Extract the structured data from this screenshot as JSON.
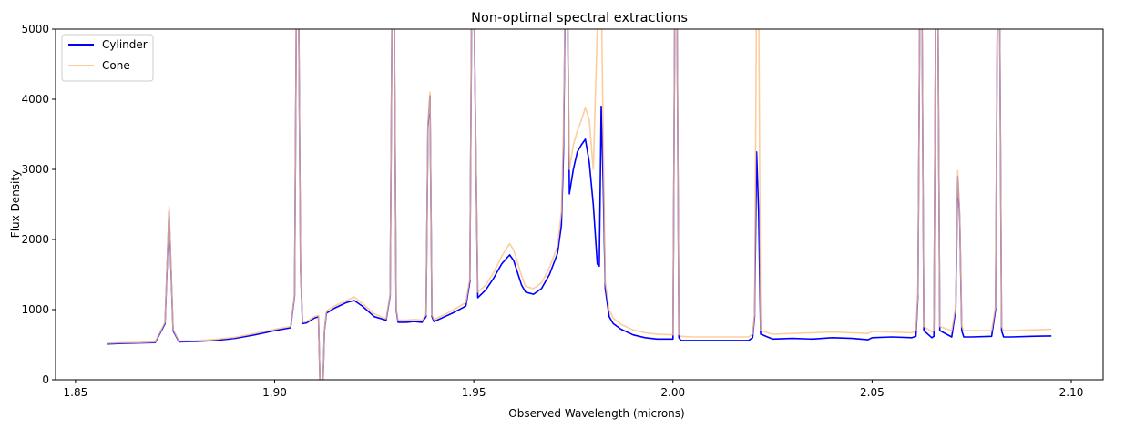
{
  "chart_data": {
    "type": "line",
    "title": "Non-optimal spectral extractions",
    "xlabel": "Observed Wavelength (microns)",
    "ylabel": "Flux Density",
    "xlim": [
      1.845,
      2.108
    ],
    "ylim": [
      0,
      5000
    ],
    "xticks": [
      1.85,
      1.9,
      1.95,
      2.0,
      2.05,
      2.1
    ],
    "xtick_labels": [
      "1.85",
      "1.90",
      "1.95",
      "2.00",
      "2.05",
      "2.10"
    ],
    "yticks": [
      0,
      1000,
      2000,
      3000,
      4000,
      5000
    ],
    "ytick_labels": [
      "0",
      "1000",
      "2000",
      "3000",
      "4000",
      "5000"
    ],
    "grid": false,
    "legend_position": "top-left",
    "series": [
      {
        "name": "Cylinder",
        "color": "#0000ff",
        "x": [
          1.858,
          1.862,
          1.866,
          1.87,
          1.8725,
          1.8735,
          1.8745,
          1.876,
          1.88,
          1.885,
          1.89,
          1.895,
          1.9,
          1.904,
          1.905,
          1.9055,
          1.906,
          1.9065,
          1.907,
          1.908,
          1.91,
          1.911,
          1.9115,
          1.912,
          1.9125,
          1.913,
          1.915,
          1.918,
          1.92,
          1.922,
          1.925,
          1.928,
          1.929,
          1.9295,
          1.93,
          1.9305,
          1.931,
          1.933,
          1.935,
          1.937,
          1.938,
          1.9385,
          1.939,
          1.9395,
          1.94,
          1.942,
          1.945,
          1.948,
          1.949,
          1.9495,
          1.95,
          1.951,
          1.953,
          1.955,
          1.957,
          1.959,
          1.96,
          1.962,
          1.963,
          1.965,
          1.967,
          1.969,
          1.971,
          1.972,
          1.9725,
          1.973,
          1.9735,
          1.974,
          1.975,
          1.976,
          1.977,
          1.978,
          1.979,
          1.98,
          1.981,
          1.9815,
          1.982,
          1.9825,
          1.983,
          1.984,
          1.985,
          1.987,
          1.99,
          1.993,
          1.996,
          2.0,
          2.0005,
          2.001,
          2.0015,
          2.002,
          2.005,
          2.01,
          2.015,
          2.019,
          2.02,
          2.0205,
          2.021,
          2.0215,
          2.022,
          2.025,
          2.03,
          2.035,
          2.04,
          2.045,
          2.049,
          2.05,
          2.055,
          2.06,
          2.061,
          2.0615,
          2.062,
          2.0625,
          2.063,
          2.065,
          2.0655,
          2.066,
          2.0665,
          2.067,
          2.07,
          2.071,
          2.0715,
          2.072,
          2.0725,
          2.073,
          2.075,
          2.08,
          2.081,
          2.0815,
          2.082,
          2.0825,
          2.083,
          2.085,
          2.09,
          2.095
        ],
        "y": [
          510,
          520,
          525,
          530,
          800,
          2400,
          700,
          540,
          545,
          560,
          590,
          640,
          700,
          740,
          1200,
          5600,
          5600,
          1600,
          800,
          810,
          880,
          900,
          -300,
          -300,
          700,
          950,
          1020,
          1100,
          1130,
          1050,
          900,
          850,
          1200,
          5500,
          5500,
          1000,
          820,
          820,
          830,
          820,
          900,
          3600,
          4050,
          900,
          830,
          880,
          960,
          1050,
          1400,
          5600,
          5600,
          1170,
          1280,
          1450,
          1650,
          1780,
          1700,
          1350,
          1250,
          1220,
          1300,
          1500,
          1800,
          2200,
          3200,
          5600,
          5600,
          2650,
          3000,
          3250,
          3350,
          3430,
          3100,
          2500,
          1650,
          1620,
          3900,
          2800,
          1300,
          900,
          800,
          720,
          640,
          600,
          580,
          580,
          5600,
          5600,
          600,
          560,
          560,
          560,
          560,
          560,
          600,
          900,
          3250,
          2400,
          650,
          580,
          590,
          580,
          600,
          590,
          570,
          600,
          610,
          600,
          620,
          1200,
          5600,
          5600,
          700,
          600,
          620,
          5600,
          5600,
          700,
          610,
          1000,
          2900,
          2300,
          700,
          610,
          610,
          620,
          1000,
          5600,
          5600,
          700,
          610,
          610,
          620,
          625
        ]
      },
      {
        "name": "Cone",
        "color": "#fdc086",
        "x": [
          1.858,
          1.862,
          1.866,
          1.87,
          1.8725,
          1.8735,
          1.8745,
          1.876,
          1.88,
          1.885,
          1.89,
          1.895,
          1.9,
          1.904,
          1.905,
          1.9055,
          1.906,
          1.9065,
          1.907,
          1.908,
          1.91,
          1.911,
          1.9115,
          1.912,
          1.9125,
          1.913,
          1.915,
          1.918,
          1.92,
          1.922,
          1.925,
          1.928,
          1.929,
          1.9295,
          1.93,
          1.9305,
          1.931,
          1.933,
          1.935,
          1.937,
          1.938,
          1.9385,
          1.939,
          1.9395,
          1.94,
          1.942,
          1.945,
          1.948,
          1.949,
          1.9495,
          1.95,
          1.951,
          1.953,
          1.955,
          1.957,
          1.959,
          1.96,
          1.962,
          1.963,
          1.965,
          1.967,
          1.969,
          1.971,
          1.972,
          1.9725,
          1.973,
          1.9735,
          1.974,
          1.975,
          1.976,
          1.977,
          1.978,
          1.979,
          1.98,
          1.981,
          1.9815,
          1.982,
          1.9825,
          1.983,
          1.984,
          1.985,
          1.987,
          1.99,
          1.993,
          1.996,
          2.0,
          2.0005,
          2.001,
          2.0015,
          2.002,
          2.005,
          2.01,
          2.015,
          2.019,
          2.02,
          2.0205,
          2.021,
          2.0215,
          2.022,
          2.025,
          2.03,
          2.035,
          2.04,
          2.045,
          2.049,
          2.05,
          2.055,
          2.06,
          2.061,
          2.0615,
          2.062,
          2.0625,
          2.063,
          2.065,
          2.0655,
          2.066,
          2.0665,
          2.067,
          2.07,
          2.071,
          2.0715,
          2.072,
          2.0725,
          2.073,
          2.075,
          2.08,
          2.081,
          2.0815,
          2.082,
          2.0825,
          2.083,
          2.085,
          2.09,
          2.095
        ],
        "y": [
          520,
          530,
          530,
          540,
          820,
          2470,
          720,
          550,
          555,
          575,
          605,
          660,
          720,
          760,
          1220,
          5600,
          5600,
          1620,
          820,
          830,
          900,
          920,
          -300,
          -300,
          720,
          980,
          1050,
          1130,
          1180,
          1090,
          940,
          870,
          1220,
          5500,
          5500,
          1020,
          850,
          850,
          860,
          850,
          930,
          3650,
          4100,
          930,
          860,
          910,
          1000,
          1100,
          1450,
          5600,
          5600,
          1250,
          1350,
          1530,
          1760,
          1940,
          1850,
          1480,
          1330,
          1300,
          1380,
          1600,
          1900,
          2400,
          3500,
          5600,
          5600,
          3000,
          3350,
          3550,
          3700,
          3880,
          3700,
          3000,
          5000,
          5600,
          5600,
          3500,
          1400,
          1000,
          880,
          790,
          710,
          670,
          650,
          640,
          5600,
          5600,
          650,
          620,
          610,
          610,
          610,
          610,
          650,
          950,
          5600,
          5600,
          700,
          650,
          660,
          670,
          680,
          670,
          660,
          690,
          680,
          670,
          700,
          1250,
          5600,
          5600,
          760,
          680,
          700,
          5600,
          5600,
          760,
          700,
          1050,
          2980,
          2350,
          760,
          700,
          700,
          700,
          1050,
          5600,
          5600,
          760,
          700,
          700,
          710,
          720
        ]
      }
    ]
  }
}
